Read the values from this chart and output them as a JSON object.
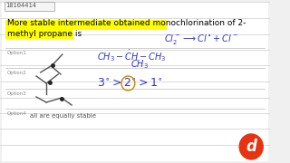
{
  "bg_color": "#f0f0f0",
  "panel_bg": "#ffffff",
  "question_id": "18104414",
  "question_text_line1": "More stable intermediate obtained monochlorination of 2-",
  "question_text_line2": "methyl propane is",
  "highlight_color": "#ffff00",
  "text_color": "#000000",
  "blue_text_color": "#1a1aff",
  "option1_label": "Option1",
  "option2_label": "Option2",
  "option3_label": "Option3",
  "option4_label": "Option4",
  "option4_text": "all are equally stable",
  "handwriting_color": "#3333cc",
  "reaction_text": "Cl₂⁻ → Cl˙ + Cl˙",
  "stability_text": "3° > 2° > 1°",
  "structure_text": "CH₃ — CH — CH₃",
  "structure_sub": "CH₃",
  "doubtnut_color": "#e63312",
  "grid_lines": true,
  "grid_color": "#cccccc"
}
